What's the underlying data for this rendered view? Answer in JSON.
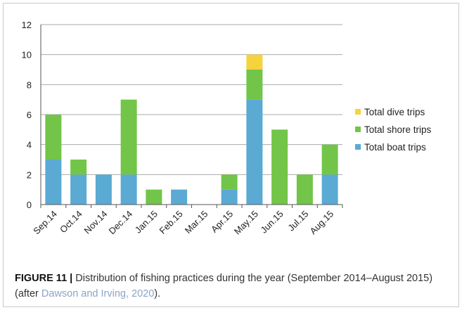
{
  "chart_data": {
    "type": "bar",
    "stacked": true,
    "categories": [
      "Sep.14",
      "Oct.14",
      "Nov.14",
      "Dec.14",
      "Jan.15",
      "Feb.15",
      "Mar.15",
      "Apr.15",
      "May.15",
      "Jun.15",
      "Jul.15",
      "Aug.15"
    ],
    "series": [
      {
        "name": "Total boat trips",
        "color": "#5aaad4",
        "values": [
          3,
          2,
          2,
          2,
          0,
          1,
          0,
          1,
          7,
          0,
          0,
          2
        ]
      },
      {
        "name": "Total shore trips",
        "color": "#72c548",
        "values": [
          3,
          1,
          0,
          5,
          1,
          0,
          0,
          1,
          2,
          5,
          2,
          2
        ]
      },
      {
        "name": "Total dive trips",
        "color": "#f5d33c",
        "values": [
          0,
          0,
          0,
          0,
          0,
          0,
          0,
          0,
          1,
          0,
          0,
          0
        ]
      }
    ],
    "ylim": [
      0,
      12
    ],
    "yticks": [
      0,
      2,
      4,
      6,
      8,
      10,
      12
    ],
    "grid": true,
    "legend": "right",
    "legend_order": [
      "Total dive trips",
      "Total shore trips",
      "Total boat trips"
    ]
  },
  "caption": {
    "label": "FIGURE 11 |",
    "text": " Distribution of fishing practices during the year (September 2014–August 2015) (after ",
    "citation": "Dawson and Irving, 2020",
    "end": ")."
  }
}
